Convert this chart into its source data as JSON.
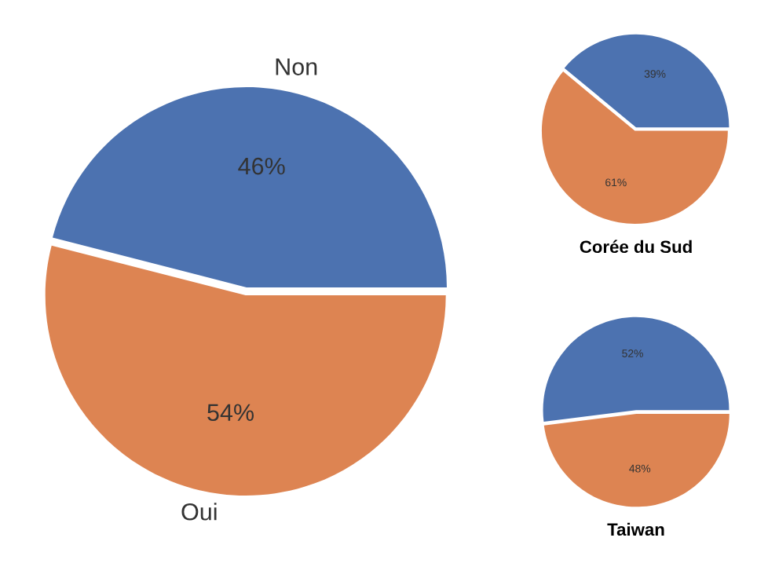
{
  "chart_data": [
    {
      "type": "pie",
      "categories": [
        "Non",
        "Oui"
      ],
      "values": [
        46,
        54
      ],
      "colors": [
        "#4c72b0",
        "#dd8452"
      ],
      "value_labels": [
        "46%",
        "54%"
      ]
    },
    {
      "type": "pie",
      "title": "Corée du Sud",
      "categories": [
        null,
        null
      ],
      "values": [
        39,
        61
      ],
      "colors": [
        "#4c72b0",
        "#dd8452"
      ],
      "value_labels": [
        "39%",
        "61%"
      ]
    },
    {
      "type": "pie",
      "title": "Taiwan",
      "categories": [
        null,
        null
      ],
      "values": [
        52,
        48
      ],
      "colors": [
        "#4c72b0",
        "#dd8452"
      ],
      "value_labels": [
        "52%",
        "48%"
      ]
    }
  ]
}
